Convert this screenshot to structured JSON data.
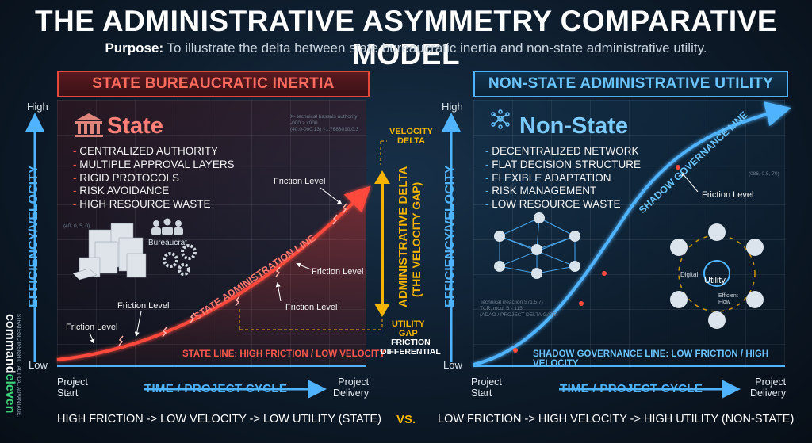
{
  "title": "THE ADMINISTRATIVE ASYMMETRY COMPARATIVE MODEL",
  "purpose": {
    "label": "Purpose:",
    "text": "To illustrate the delta between state bureaucratic inertia and non-state administrative utility."
  },
  "state": {
    "header": "STATE BUREAUCRATIC INERTIA",
    "entity": "State",
    "traits": [
      "CENTRALIZED AUTHORITY",
      "MULTIPLE APPROVAL LAYERS",
      "RIGID PROTOCOLS",
      "RISK AVOIDANCE",
      "HIGH RESOURCE WASTE"
    ],
    "line_label": "STATE ADMINISTRATION LINE",
    "line_caption": "STATE LINE: HIGH FRICTION / LOW VELOCITY",
    "bureaucrat": "Bureaucrat",
    "friction": [
      "Friction Level",
      "Friction Level",
      "Friction Level",
      "Friction Level",
      "Friction Level"
    ],
    "tiny_top": "X- technical bassals authority\n-000 > x000\n(40.0-000.13) ~1.7688010.0.3",
    "tiny_left": "(40, 0, 5, 0)"
  },
  "non_state": {
    "header": "NON-STATE ADMINISTRATIVE UTILITY",
    "entity": "Non-State",
    "traits": [
      "DECENTRALIZED NETWORK",
      "FLAT DECISION STRUCTURE",
      "FLEXIBLE ADAPTATION",
      "RISK MANAGEMENT",
      "LOW RESOURCE WASTE"
    ],
    "line_label": "SHADOW GOVERNANCE LINE",
    "line_caption": "SHADOW GOVERNANCE LINE: LOW FRICTION / HIGH VELOCITY",
    "friction": "Friction Level",
    "hub": {
      "center": "Utility",
      "digital": "Digital",
      "efficient": "Efficient\nFlow"
    },
    "tiny_mid": "Technical (reaction 571,5,7)\nTCR, mod. B - 115\n(ADAO / PROJECT DELTA GATE)",
    "tiny_right": "(086, 0.5, 70)"
  },
  "axes": {
    "y": "EFFICIENCY/VELOCITY",
    "high": "High",
    "low": "Low",
    "x": "TIME / PROJECT CYCLE",
    "start": "Project\nStart",
    "end": "Project\nDelivery"
  },
  "delta": {
    "velocity": "VELOCITY\nDELTA",
    "main": "ADMINISTRATIVE DELTA",
    "sub": "(THE VELOCITY GAP)",
    "utility": "UTILITY\nGAP",
    "friction": "FRICTION\nDIFFERENTIAL"
  },
  "footer": {
    "left": "HIGH FRICTION -> LOW VELOCITY -> LOW UTILITY (STATE)",
    "vs": "VS.",
    "right": "LOW FRICTION -> HIGH VELOCITY -> HIGH UTILITY (NON-STATE)"
  },
  "brand": {
    "name_a": "command",
    "name_b": "eleven",
    "tagline": "STRATEGIC INSIGHT. TACTICAL ADVANTAGE."
  },
  "colors": {
    "state": "#ff4a3d",
    "non_state": "#4fb3ff",
    "gold": "#f4b400"
  }
}
